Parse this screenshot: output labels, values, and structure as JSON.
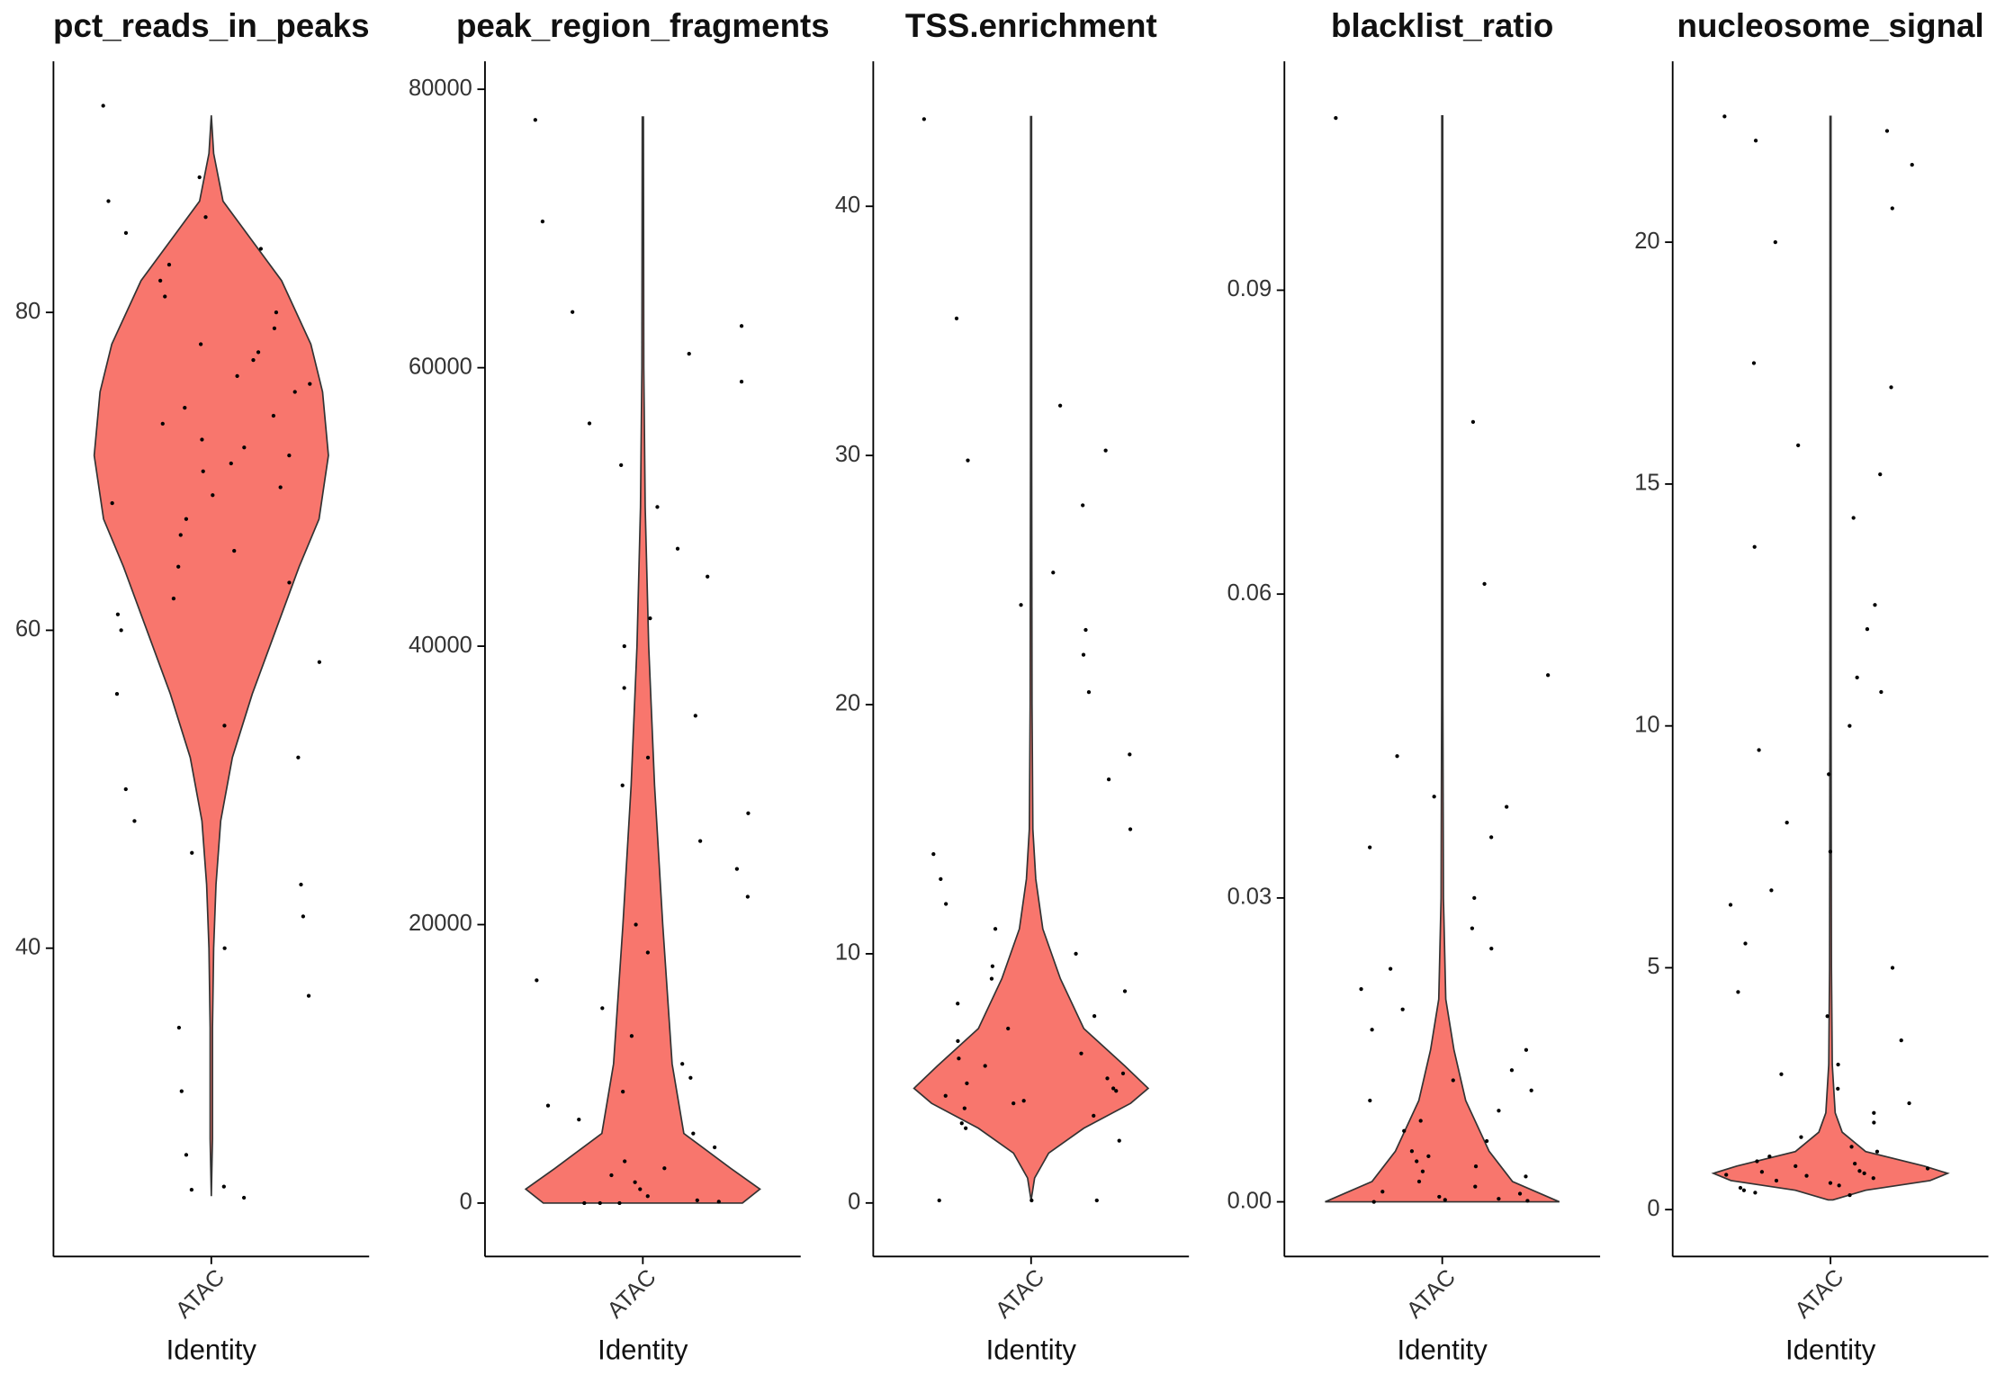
{
  "chart_data": [
    {
      "type": "violin",
      "title": "pct_reads_in_peaks",
      "xlabel": "Identity",
      "categories": [
        "ATAC"
      ],
      "color": "#F8766D",
      "ylim": [
        20.6,
        95.8
      ],
      "yticks": [
        40,
        60,
        80
      ],
      "violin": {
        "y": [
          24.4,
          28,
          35,
          40,
          44,
          48,
          52,
          56,
          60,
          64,
          67,
          71,
          75,
          78,
          82,
          85,
          87,
          90,
          92.4
        ],
        "density": [
          0,
          0.01,
          0.01,
          0.02,
          0.04,
          0.08,
          0.18,
          0.35,
          0.55,
          0.75,
          0.92,
          1.0,
          0.95,
          0.85,
          0.6,
          0.3,
          0.1,
          0.02,
          0
        ]
      },
      "values": [
        93,
        88.5,
        87,
        86,
        85,
        84,
        83,
        82,
        81,
        80,
        79,
        78,
        77.5,
        77,
        76,
        75.5,
        75,
        74,
        73.5,
        73,
        72,
        71.5,
        71,
        70.5,
        70,
        69,
        68.5,
        68,
        67,
        66,
        65,
        64,
        63,
        62,
        61,
        60,
        58,
        56,
        54,
        52,
        50,
        48,
        46,
        44,
        42,
        40,
        37,
        35,
        31,
        27,
        25,
        24.8,
        24.3
      ]
    },
    {
      "type": "violin",
      "title": "peak_region_fragments",
      "xlabel": "Identity",
      "categories": [
        "ATAC"
      ],
      "color": "#F8766D",
      "ylim": [
        -3840,
        82010
      ],
      "yticks": [
        0,
        20000,
        40000,
        60000,
        80000
      ],
      "violin": {
        "y": [
          0,
          1000,
          2500,
          5000,
          10000,
          20000,
          30000,
          40000,
          50000,
          60000,
          78000
        ],
        "density": [
          0.85,
          1.0,
          0.75,
          0.35,
          0.25,
          0.17,
          0.1,
          0.05,
          0.02,
          0.008,
          0.005
        ]
      },
      "values": [
        77800,
        70500,
        64000,
        63000,
        61000,
        59000,
        56000,
        53000,
        50000,
        47000,
        45000,
        42000,
        40000,
        37000,
        35000,
        32000,
        30000,
        28000,
        26000,
        24000,
        22000,
        20000,
        18000,
        16000,
        14000,
        12000,
        10000,
        9000,
        8000,
        7000,
        6000,
        5000,
        4000,
        3000,
        2500,
        2000,
        1500,
        1000,
        500,
        200,
        100,
        0,
        0,
        0
      ]
    },
    {
      "type": "violin",
      "title": "TSS.enrichment",
      "xlabel": "Identity",
      "categories": [
        "ATAC"
      ],
      "color": "#F8766D",
      "ylim": [
        -2.15,
        45.82
      ],
      "yticks": [
        0,
        10,
        20,
        30,
        40
      ],
      "violin": {
        "y": [
          0.1,
          1,
          2,
          3,
          4,
          4.6,
          5.5,
          7,
          9,
          11,
          13,
          15,
          20,
          30,
          43.6
        ],
        "density": [
          0,
          0.03,
          0.15,
          0.45,
          0.85,
          1.0,
          0.8,
          0.45,
          0.25,
          0.1,
          0.04,
          0.015,
          0.008,
          0.005,
          0.004
        ]
      },
      "values": [
        43.5,
        35.5,
        32,
        30.2,
        29.8,
        28,
        25.3,
        24,
        23,
        22,
        20.5,
        18,
        17,
        15,
        14,
        13,
        12,
        11,
        10,
        9.5,
        9,
        8.5,
        8,
        7.5,
        7,
        6.5,
        6,
        5.8,
        5.5,
        5.2,
        5,
        4.8,
        4.6,
        4.5,
        4.3,
        4.1,
        4,
        3.8,
        3.5,
        3.2,
        3,
        2.5,
        0.1,
        0.1,
        0.1
      ]
    },
    {
      "type": "violin",
      "title": "blacklist_ratio",
      "xlabel": "Identity",
      "categories": [
        "ATAC"
      ],
      "color": "#F8766D",
      "ylim": [
        -0.0054,
        0.1126
      ],
      "yticks": [
        {
          "value": 0,
          "label": "0.00"
        },
        0.03,
        0.06,
        0.09
      ],
      "violin": {
        "y": [
          0,
          0.002,
          0.005,
          0.01,
          0.015,
          0.02,
          0.03,
          0.05,
          0.1072
        ],
        "density": [
          1.0,
          0.6,
          0.4,
          0.2,
          0.1,
          0.03,
          0.01,
          0.005,
          0.004
        ]
      },
      "values": [
        0.107,
        0.077,
        0.061,
        0.052,
        0.044,
        0.04,
        0.039,
        0.036,
        0.035,
        0.03,
        0.027,
        0.025,
        0.023,
        0.021,
        0.019,
        0.017,
        0.015,
        0.013,
        0.012,
        0.011,
        0.01,
        0.009,
        0.008,
        0.007,
        0.006,
        0.005,
        0.0045,
        0.004,
        0.0035,
        0.003,
        0.0025,
        0.002,
        0.0015,
        0.001,
        0.0008,
        0.0005,
        0.0003,
        0.0002,
        0.0001,
        0
      ]
    },
    {
      "type": "violin",
      "title": "nucleosome_signal",
      "xlabel": "Identity",
      "categories": [
        "ATAC"
      ],
      "color": "#F8766D",
      "ylim": [
        -0.97,
        23.74
      ],
      "yticks": [
        0,
        5,
        10,
        15,
        20
      ],
      "violin": {
        "y": [
          0.2,
          0.4,
          0.6,
          0.75,
          0.9,
          1.2,
          1.6,
          2,
          3,
          5,
          10,
          22.6
        ],
        "density": [
          0.02,
          0.3,
          0.85,
          1.0,
          0.8,
          0.3,
          0.1,
          0.04,
          0.015,
          0.008,
          0.005,
          0.004
        ]
      },
      "values": [
        22.6,
        22.3,
        22.1,
        21.6,
        20.7,
        20,
        17.5,
        17,
        15.8,
        15.2,
        14.3,
        13.7,
        12.5,
        12,
        11,
        10.7,
        10,
        9.5,
        9,
        8,
        7.4,
        6.6,
        6.3,
        5.5,
        5,
        4.5,
        4,
        3.5,
        3,
        2.8,
        2.5,
        2.2,
        2,
        1.8,
        1.5,
        1.3,
        1.2,
        1.1,
        1,
        0.95,
        0.9,
        0.85,
        0.8,
        0.78,
        0.75,
        0.72,
        0.7,
        0.65,
        0.6,
        0.55,
        0.5,
        0.45,
        0.4,
        0.35,
        0.3
      ]
    }
  ]
}
